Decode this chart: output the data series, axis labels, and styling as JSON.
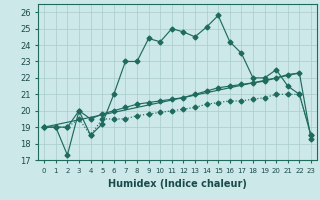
{
  "xlabel": "Humidex (Indice chaleur)",
  "background_color": "#cce8e8",
  "grid_color": "#aacccc",
  "line_color": "#1e6b5e",
  "xlim": [
    -0.5,
    23.5
  ],
  "ylim": [
    17,
    26.5
  ],
  "xticks": [
    0,
    1,
    2,
    3,
    4,
    5,
    6,
    7,
    8,
    9,
    10,
    11,
    12,
    13,
    14,
    15,
    16,
    17,
    18,
    19,
    20,
    21,
    22,
    23
  ],
  "yticks": [
    17,
    18,
    19,
    20,
    21,
    22,
    23,
    24,
    25,
    26
  ],
  "line1_x": [
    0,
    1,
    2,
    3,
    4,
    5,
    6,
    7,
    8,
    9,
    10,
    11,
    12,
    13,
    14,
    15,
    16,
    17,
    18,
    19,
    20,
    21,
    22,
    23
  ],
  "line1_y": [
    19,
    19,
    17.3,
    20,
    18.5,
    19.2,
    21.0,
    23.0,
    23.0,
    24.4,
    24.2,
    25.0,
    24.8,
    24.5,
    25.1,
    25.8,
    24.2,
    23.5,
    22.0,
    22.0,
    22.5,
    21.5,
    21.0,
    18.5
  ],
  "line2_x": [
    0,
    1,
    2,
    3,
    4,
    5,
    6,
    7,
    8,
    9,
    10,
    11,
    12,
    13,
    14,
    15,
    16,
    17,
    18,
    19,
    20,
    21,
    22,
    23
  ],
  "line2_y": [
    19,
    19,
    19,
    19.5,
    18.5,
    19.5,
    19.5,
    19.5,
    19.7,
    19.8,
    19.9,
    20.0,
    20.1,
    20.2,
    20.4,
    20.5,
    20.6,
    20.6,
    20.7,
    20.8,
    21.0,
    21.0,
    21.0,
    18.5
  ],
  "line3_x": [
    0,
    1,
    2,
    3,
    4,
    5,
    6,
    7,
    8,
    9,
    10,
    11,
    12,
    13,
    14,
    15,
    16,
    17,
    18,
    19,
    20,
    21,
    22,
    23
  ],
  "line3_y": [
    19,
    19,
    19,
    20,
    19.5,
    19.8,
    20.0,
    20.2,
    20.4,
    20.5,
    20.6,
    20.7,
    20.8,
    21.0,
    21.2,
    21.4,
    21.5,
    21.6,
    21.7,
    21.8,
    22.0,
    22.2,
    22.3,
    18.3
  ],
  "line4_x": [
    0,
    22
  ],
  "line4_y": [
    19,
    22.3
  ]
}
